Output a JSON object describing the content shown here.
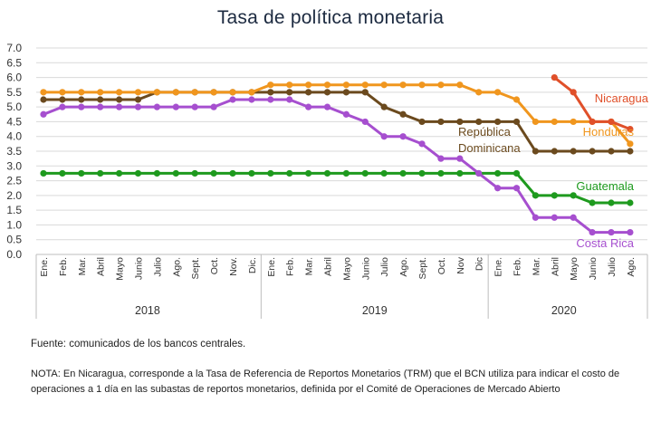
{
  "title": "Tasa de política monetaria",
  "source": "Fuente: comunicados de los bancos centrales.",
  "note": "NOTA: En Nicaragua, corresponde a la Tasa de Referencia de Reportos Monetarios (TRM) que el BCN utiliza para indicar el costo de operaciones a 1 día en las subastas de reportos monetarios, definida por el Comité de Operaciones de Mercado Abierto",
  "chart_data": {
    "type": "line",
    "title": "Tasa de política monetaria",
    "ylim": [
      0,
      7
    ],
    "yticks": [
      "0.0",
      "0.5",
      "1.0",
      "1.5",
      "2.0",
      "2.5",
      "3.0",
      "3.5",
      "4.0",
      "4.5",
      "5.0",
      "5.5",
      "6.0",
      "6.5",
      "7.0"
    ],
    "grid": true,
    "categories": [
      "Ene.",
      "Feb.",
      "Mar.",
      "Abril",
      "Mayo",
      "Junio",
      "Julio",
      "Ago.",
      "Sept.",
      "Oct.",
      "Nov.",
      "Dic.",
      "Ene.",
      "Feb.",
      "Mar.",
      "Abril",
      "Mayo",
      "Junio",
      "Julio",
      "Ago.",
      "Sept.",
      "Oct.",
      "Nov",
      "Dic",
      "Ene.",
      "Feb.",
      "Mar.",
      "Abril",
      "Mayo",
      "Junio",
      "Julio",
      "Ago."
    ],
    "years": [
      {
        "label": "2018",
        "start": 0,
        "end": 11
      },
      {
        "label": "2019",
        "start": 12,
        "end": 23
      },
      {
        "label": "2020",
        "start": 24,
        "end": 31
      }
    ],
    "series": [
      {
        "name": "Guatemala",
        "color": "#1e9a1e",
        "label_lines": [
          "Guatemala"
        ],
        "values": [
          2.75,
          2.75,
          2.75,
          2.75,
          2.75,
          2.75,
          2.75,
          2.75,
          2.75,
          2.75,
          2.75,
          2.75,
          2.75,
          2.75,
          2.75,
          2.75,
          2.75,
          2.75,
          2.75,
          2.75,
          2.75,
          2.75,
          2.75,
          2.75,
          2.75,
          2.75,
          2.0,
          2.0,
          2.0,
          1.75,
          1.75,
          1.75
        ]
      },
      {
        "name": "Costa Rica",
        "color": "#a64fcf",
        "label_lines": [
          "Costa Rica"
        ],
        "values": [
          4.75,
          5.0,
          5.0,
          5.0,
          5.0,
          5.0,
          5.0,
          5.0,
          5.0,
          5.0,
          5.25,
          5.25,
          5.25,
          5.25,
          5.0,
          5.0,
          4.75,
          4.5,
          4.0,
          4.0,
          3.75,
          3.25,
          3.25,
          2.75,
          2.25,
          2.25,
          1.25,
          1.25,
          1.25,
          0.75,
          0.75,
          0.75
        ]
      },
      {
        "name": "República Dominicana",
        "color": "#6b4a1e",
        "label_lines": [
          "República",
          "Dominicana"
        ],
        "values": [
          5.25,
          5.25,
          5.25,
          5.25,
          5.25,
          5.25,
          5.5,
          5.5,
          5.5,
          5.5,
          5.5,
          5.5,
          5.5,
          5.5,
          5.5,
          5.5,
          5.5,
          5.5,
          5.0,
          4.75,
          4.5,
          4.5,
          4.5,
          4.5,
          4.5,
          4.5,
          3.5,
          3.5,
          3.5,
          3.5,
          3.5,
          3.5
        ]
      },
      {
        "name": "Honduras",
        "color": "#f0961e",
        "label_lines": [
          "Honduras"
        ],
        "values": [
          5.5,
          5.5,
          5.5,
          5.5,
          5.5,
          5.5,
          5.5,
          5.5,
          5.5,
          5.5,
          5.5,
          5.5,
          5.75,
          5.75,
          5.75,
          5.75,
          5.75,
          5.75,
          5.75,
          5.75,
          5.75,
          5.75,
          5.75,
          5.5,
          5.5,
          5.25,
          4.5,
          4.5,
          4.5,
          4.5,
          4.5,
          3.75
        ]
      },
      {
        "name": "Nicaragua",
        "color": "#e0502a",
        "label_lines": [
          "Nicaragua"
        ],
        "values": [
          null,
          null,
          null,
          null,
          null,
          null,
          null,
          null,
          null,
          null,
          null,
          null,
          null,
          null,
          null,
          null,
          null,
          null,
          null,
          null,
          null,
          null,
          null,
          null,
          null,
          null,
          null,
          6.0,
          5.5,
          4.5,
          4.5,
          4.25
        ]
      }
    ]
  }
}
